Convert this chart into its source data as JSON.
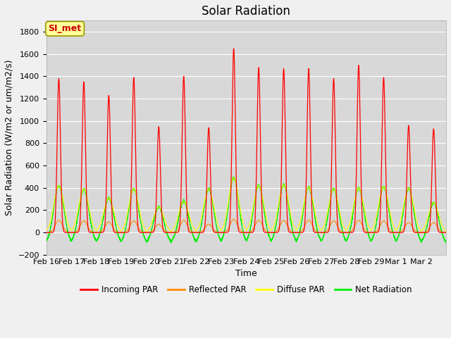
{
  "title": "Solar Radiation",
  "ylabel": "Solar Radiation (W/m2 or um/m2/s)",
  "xlabel": "Time",
  "ylim": [
    -200,
    1900
  ],
  "yticks": [
    -200,
    0,
    200,
    400,
    600,
    800,
    1000,
    1200,
    1400,
    1600,
    1800
  ],
  "xtick_labels": [
    "Feb 16",
    "Feb 17",
    "Feb 18",
    "Feb 19",
    "Feb 20",
    "Feb 21",
    "Feb 22",
    "Feb 23",
    "Feb 24",
    "Feb 25",
    "Feb 26",
    "Feb 27",
    "Feb 28",
    "Feb 29",
    "Mar 1",
    "Mar 2"
  ],
  "legend_labels": [
    "Incoming PAR",
    "Reflected PAR",
    "Diffuse PAR",
    "Net Radiation"
  ],
  "colors": {
    "incoming": "#ff0000",
    "reflected": "#ff8c00",
    "diffuse": "#ffff00",
    "net": "#00ee00"
  },
  "annotation": "SI_met",
  "annotation_color": "#cc0000",
  "annotation_bg": "#ffff99",
  "annotation_edge": "#999900",
  "plot_bg": "#d8d8d8",
  "fig_bg": "#f0f0f0",
  "grid_color": "#ffffff",
  "title_fontsize": 12,
  "label_fontsize": 9,
  "tick_fontsize": 8,
  "n_days": 16,
  "ppd": 288,
  "day_peaks_incoming": [
    1380,
    1350,
    1230,
    1390,
    950,
    1400,
    940,
    1650,
    1480,
    1470,
    1470,
    1380,
    1500,
    1390,
    960,
    930
  ],
  "day_peaks_reflected": [
    110,
    105,
    95,
    105,
    75,
    110,
    75,
    120,
    110,
    110,
    110,
    105,
    110,
    105,
    90,
    90
  ],
  "day_peaks_diffuse": [
    420,
    390,
    310,
    390,
    230,
    280,
    390,
    490,
    420,
    430,
    405,
    390,
    400,
    410,
    395,
    265
  ],
  "day_peaks_net": [
    420,
    390,
    310,
    390,
    230,
    280,
    390,
    490,
    420,
    430,
    405,
    390,
    400,
    410,
    395,
    265
  ],
  "night_net": -100
}
